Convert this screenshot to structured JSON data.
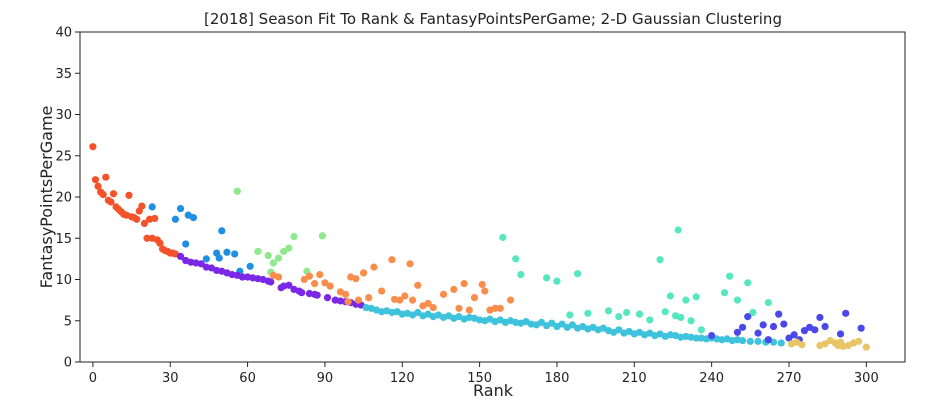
{
  "chart_data": {
    "type": "scatter",
    "title": "[2018] Season Fit To Rank & FantasyPointsPerGame; 2-D Gaussian Clustering",
    "xlabel": "Rank",
    "ylabel": "FantasyPointsPerGame",
    "xlim": [
      -5,
      315
    ],
    "ylim": [
      0,
      40
    ],
    "xticks": [
      0,
      30,
      60,
      90,
      120,
      150,
      180,
      210,
      240,
      270,
      300
    ],
    "yticks": [
      0,
      5,
      10,
      15,
      20,
      25,
      30,
      35,
      40
    ],
    "grid": false,
    "series": [
      {
        "color": "#f4522a",
        "points": [
          [
            0,
            26.1
          ],
          [
            1,
            22.1
          ],
          [
            2,
            21.3
          ],
          [
            3,
            20.6
          ],
          [
            4,
            20.3
          ],
          [
            5,
            22.4
          ],
          [
            6,
            19.6
          ],
          [
            7,
            19.4
          ],
          [
            8,
            20.4
          ],
          [
            9,
            18.8
          ],
          [
            10,
            18.5
          ],
          [
            11,
            18.2
          ],
          [
            12,
            17.9
          ],
          [
            13,
            17.8
          ],
          [
            14,
            20.2
          ],
          [
            15,
            17.6
          ],
          [
            16,
            17.5
          ],
          [
            17,
            17.3
          ],
          [
            18,
            18.3
          ],
          [
            19,
            18.9
          ],
          [
            20,
            16.8
          ],
          [
            21,
            15.0
          ],
          [
            22,
            17.3
          ],
          [
            23,
            15.0
          ],
          [
            24,
            17.4
          ],
          [
            25,
            14.8
          ],
          [
            26,
            14.4
          ],
          [
            27,
            13.7
          ],
          [
            28,
            13.5
          ],
          [
            29,
            13.4
          ],
          [
            30,
            13.2
          ],
          [
            31,
            13.2
          ],
          [
            32,
            13.1
          ]
        ]
      },
      {
        "color": "#1e8fe3",
        "points": [
          [
            23,
            18.8
          ],
          [
            32,
            17.3
          ],
          [
            34,
            18.6
          ],
          [
            36,
            14.3
          ],
          [
            37,
            17.8
          ],
          [
            39,
            17.5
          ],
          [
            44,
            12.5
          ],
          [
            48,
            13.2
          ],
          [
            49,
            12.6
          ],
          [
            50,
            15.9
          ],
          [
            52,
            13.3
          ],
          [
            55,
            13.1
          ],
          [
            57,
            11.0
          ],
          [
            61,
            11.6
          ]
        ]
      },
      {
        "color": "#7a28e6",
        "points": [
          [
            34,
            12.8
          ],
          [
            36,
            12.3
          ],
          [
            38,
            12.1
          ],
          [
            40,
            12.0
          ],
          [
            42,
            11.9
          ],
          [
            44,
            11.5
          ],
          [
            46,
            11.4
          ],
          [
            48,
            11.1
          ],
          [
            50,
            11.0
          ],
          [
            52,
            10.8
          ],
          [
            54,
            10.6
          ],
          [
            56,
            10.5
          ],
          [
            58,
            10.3
          ],
          [
            60,
            10.3
          ],
          [
            62,
            10.2
          ],
          [
            64,
            10.1
          ],
          [
            66,
            10.0
          ],
          [
            68,
            9.8
          ],
          [
            69,
            9.7
          ],
          [
            73,
            9.0
          ],
          [
            74,
            9.2
          ],
          [
            76,
            9.3
          ],
          [
            78,
            8.8
          ],
          [
            80,
            8.6
          ],
          [
            81,
            8.4
          ],
          [
            84,
            8.3
          ],
          [
            86,
            8.2
          ],
          [
            87,
            8.1
          ],
          [
            91,
            7.8
          ],
          [
            94,
            7.5
          ],
          [
            96,
            7.4
          ],
          [
            98,
            7.3
          ],
          [
            100,
            7.2
          ],
          [
            102,
            7.0
          ],
          [
            104,
            6.9
          ]
        ]
      },
      {
        "color": "#8ee88c",
        "points": [
          [
            56,
            20.7
          ],
          [
            64,
            13.4
          ],
          [
            68,
            12.9
          ],
          [
            70,
            12.0
          ],
          [
            72,
            12.6
          ],
          [
            74,
            13.4
          ],
          [
            76,
            13.8
          ],
          [
            78,
            15.2
          ],
          [
            89,
            15.3
          ],
          [
            83,
            11.0
          ],
          [
            69,
            10.9
          ]
        ]
      },
      {
        "color": "#f98e4c",
        "points": [
          [
            70,
            10.5
          ],
          [
            72,
            10.3
          ],
          [
            82,
            10.0
          ],
          [
            84,
            10.4
          ],
          [
            86,
            9.5
          ],
          [
            88,
            10.6
          ],
          [
            90,
            9.6
          ],
          [
            92,
            9.2
          ],
          [
            96,
            8.5
          ],
          [
            98,
            8.2
          ],
          [
            99,
            7.3
          ],
          [
            100,
            10.3
          ],
          [
            102,
            10.1
          ],
          [
            103,
            7.5
          ],
          [
            105,
            10.8
          ],
          [
            107,
            7.8
          ],
          [
            109,
            11.5
          ],
          [
            112,
            8.6
          ],
          [
            116,
            12.4
          ],
          [
            117,
            7.6
          ],
          [
            119,
            7.5
          ],
          [
            121,
            8.0
          ],
          [
            123,
            11.9
          ],
          [
            124,
            7.5
          ],
          [
            126,
            9.3
          ],
          [
            128,
            6.8
          ],
          [
            130,
            7.1
          ],
          [
            132,
            6.6
          ],
          [
            136,
            8.2
          ],
          [
            140,
            8.8
          ],
          [
            142,
            6.5
          ],
          [
            144,
            9.5
          ],
          [
            146,
            6.3
          ],
          [
            148,
            7.8
          ],
          [
            151,
            9.4
          ],
          [
            152,
            8.6
          ],
          [
            154,
            6.3
          ],
          [
            156,
            6.5
          ],
          [
            158,
            6.5
          ],
          [
            162,
            7.5
          ]
        ]
      },
      {
        "color": "#3fc3dd",
        "points": [
          [
            106,
            6.6
          ],
          [
            108,
            6.5
          ],
          [
            110,
            6.3
          ],
          [
            112,
            6.1
          ],
          [
            114,
            6.2
          ],
          [
            116,
            6.0
          ],
          [
            118,
            6.1
          ],
          [
            120,
            5.8
          ],
          [
            122,
            5.9
          ],
          [
            124,
            5.7
          ],
          [
            126,
            6.0
          ],
          [
            128,
            5.6
          ],
          [
            130,
            5.8
          ],
          [
            132,
            5.5
          ],
          [
            134,
            5.7
          ],
          [
            136,
            5.4
          ],
          [
            138,
            5.6
          ],
          [
            140,
            5.3
          ],
          [
            142,
            5.5
          ],
          [
            144,
            5.2
          ],
          [
            146,
            5.4
          ],
          [
            148,
            5.3
          ],
          [
            150,
            5.1
          ],
          [
            152,
            5.0
          ],
          [
            154,
            5.2
          ],
          [
            156,
            4.9
          ],
          [
            158,
            5.1
          ],
          [
            160,
            4.8
          ],
          [
            162,
            5.0
          ],
          [
            164,
            4.8
          ],
          [
            166,
            4.7
          ],
          [
            168,
            4.9
          ],
          [
            170,
            4.6
          ],
          [
            172,
            4.5
          ],
          [
            174,
            4.8
          ],
          [
            176,
            4.4
          ],
          [
            178,
            4.7
          ],
          [
            180,
            4.3
          ],
          [
            182,
            4.6
          ],
          [
            184,
            4.2
          ],
          [
            186,
            4.5
          ],
          [
            188,
            4.1
          ],
          [
            190,
            4.3
          ],
          [
            192,
            4.0
          ],
          [
            194,
            4.2
          ],
          [
            196,
            3.9
          ],
          [
            198,
            4.1
          ],
          [
            200,
            3.8
          ],
          [
            202,
            3.6
          ],
          [
            204,
            3.9
          ],
          [
            206,
            3.5
          ],
          [
            208,
            3.7
          ],
          [
            210,
            3.4
          ],
          [
            212,
            3.6
          ],
          [
            214,
            3.3
          ],
          [
            216,
            3.5
          ],
          [
            218,
            3.2
          ],
          [
            220,
            3.4
          ],
          [
            222,
            3.1
          ],
          [
            224,
            3.3
          ],
          [
            226,
            3.2
          ],
          [
            228,
            3.0
          ],
          [
            230,
            3.1
          ],
          [
            232,
            3.0
          ],
          [
            234,
            2.9
          ],
          [
            236,
            2.9
          ],
          [
            238,
            2.8
          ],
          [
            240,
            2.9
          ],
          [
            242,
            2.8
          ],
          [
            244,
            2.7
          ],
          [
            246,
            2.8
          ],
          [
            248,
            2.6
          ],
          [
            250,
            2.7
          ],
          [
            252,
            2.6
          ],
          [
            255,
            2.5
          ],
          [
            258,
            2.5
          ],
          [
            261,
            2.4
          ],
          [
            264,
            2.4
          ],
          [
            267,
            2.3
          ]
        ]
      },
      {
        "color": "#56e7c1",
        "points": [
          [
            159,
            15.1
          ],
          [
            164,
            12.5
          ],
          [
            166,
            10.6
          ],
          [
            176,
            10.2
          ],
          [
            180,
            9.8
          ],
          [
            188,
            10.7
          ],
          [
            185,
            5.7
          ],
          [
            192,
            5.9
          ],
          [
            200,
            6.2
          ],
          [
            204,
            5.5
          ],
          [
            207,
            6.0
          ],
          [
            212,
            5.8
          ],
          [
            216,
            5.1
          ],
          [
            220,
            12.4
          ],
          [
            222,
            6.1
          ],
          [
            224,
            8.0
          ],
          [
            226,
            5.6
          ],
          [
            227,
            16.0
          ],
          [
            228,
            5.4
          ],
          [
            230,
            7.5
          ],
          [
            232,
            5.0
          ],
          [
            234,
            7.9
          ],
          [
            236,
            3.9
          ],
          [
            245,
            8.4
          ],
          [
            247,
            10.4
          ],
          [
            250,
            7.5
          ],
          [
            254,
            9.6
          ],
          [
            256,
            6.0
          ],
          [
            262,
            7.2
          ]
        ]
      },
      {
        "color": "#4a48e8",
        "points": [
          [
            240,
            3.2
          ],
          [
            250,
            3.6
          ],
          [
            252,
            4.2
          ],
          [
            254,
            5.5
          ],
          [
            258,
            3.5
          ],
          [
            260,
            4.5
          ],
          [
            262,
            2.7
          ],
          [
            264,
            4.3
          ],
          [
            266,
            5.8
          ],
          [
            268,
            4.6
          ],
          [
            270,
            2.9
          ],
          [
            272,
            3.3
          ],
          [
            274,
            2.7
          ],
          [
            276,
            3.8
          ],
          [
            278,
            4.2
          ],
          [
            280,
            3.9
          ],
          [
            282,
            5.4
          ],
          [
            284,
            4.3
          ],
          [
            290,
            3.4
          ],
          [
            292,
            5.9
          ],
          [
            298,
            4.1
          ]
        ]
      },
      {
        "color": "#e8c567",
        "points": [
          [
            271,
            2.2
          ],
          [
            273,
            2.4
          ],
          [
            275,
            2.1
          ],
          [
            282,
            2.0
          ],
          [
            284,
            2.2
          ],
          [
            286,
            2.6
          ],
          [
            288,
            2.3
          ],
          [
            289,
            2.0
          ],
          [
            290,
            2.4
          ],
          [
            291,
            1.9
          ],
          [
            293,
            2.0
          ],
          [
            295,
            2.3
          ],
          [
            297,
            2.5
          ],
          [
            300,
            1.8
          ]
        ]
      }
    ]
  }
}
